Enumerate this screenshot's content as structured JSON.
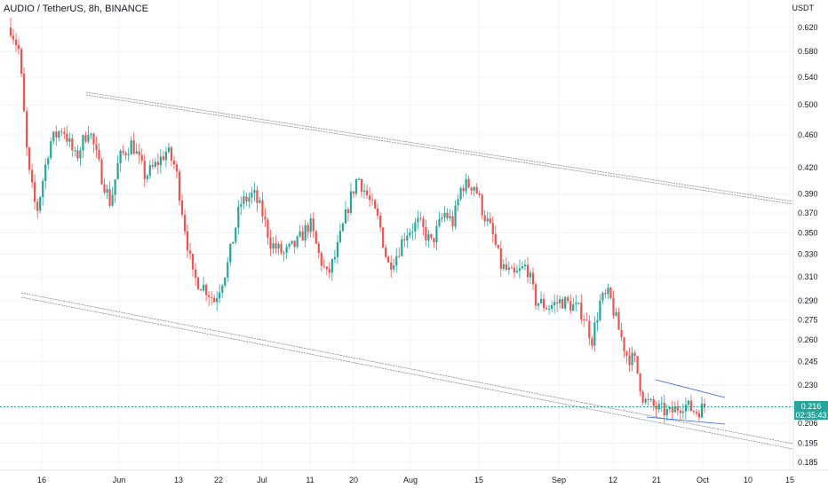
{
  "chart_data": {
    "type": "candlestick",
    "title": "AUDIO / TetherUS, 8h, BINANCE",
    "yunit": "USDT",
    "y_ticks": [
      "0.620",
      "0.580",
      "0.540",
      "0.500",
      "0.460",
      "0.420",
      "0.390",
      "0.370",
      "0.350",
      "0.330",
      "0.310",
      "0.290",
      "0.275",
      "0.260",
      "0.245",
      "0.230",
      "0.206",
      "0.195",
      "0.185"
    ],
    "x_ticks": [
      "16",
      "Jun",
      "13",
      "22",
      "Jul",
      "11",
      "20",
      "Aug",
      "15",
      "Sep",
      "12",
      "21",
      "Oct",
      "10",
      "15"
    ],
    "last_price": "0.216",
    "countdown": "02:35:43",
    "up_color": "#26a69a",
    "down_color": "#ef5350",
    "grid": true,
    "y_scale": "log",
    "anchors": [
      {
        "t": 0.0,
        "c": 0.62
      },
      {
        "t": 0.01,
        "c": 0.58
      },
      {
        "t": 0.02,
        "c": 0.42
      },
      {
        "t": 0.03,
        "c": 0.37
      },
      {
        "t": 0.045,
        "c": 0.45
      },
      {
        "t": 0.06,
        "c": 0.47
      },
      {
        "t": 0.075,
        "c": 0.43
      },
      {
        "t": 0.09,
        "c": 0.47
      },
      {
        "t": 0.105,
        "c": 0.41
      },
      {
        "t": 0.115,
        "c": 0.38
      },
      {
        "t": 0.125,
        "c": 0.43
      },
      {
        "t": 0.14,
        "c": 0.45
      },
      {
        "t": 0.155,
        "c": 0.41
      },
      {
        "t": 0.165,
        "c": 0.42
      },
      {
        "t": 0.18,
        "c": 0.44
      },
      {
        "t": 0.19,
        "c": 0.42
      },
      {
        "t": 0.2,
        "c": 0.36
      },
      {
        "t": 0.21,
        "c": 0.31
      },
      {
        "t": 0.225,
        "c": 0.3
      },
      {
        "t": 0.235,
        "c": 0.29
      },
      {
        "t": 0.25,
        "c": 0.32
      },
      {
        "t": 0.265,
        "c": 0.38
      },
      {
        "t": 0.28,
        "c": 0.39
      },
      {
        "t": 0.29,
        "c": 0.37
      },
      {
        "t": 0.3,
        "c": 0.34
      },
      {
        "t": 0.315,
        "c": 0.33
      },
      {
        "t": 0.33,
        "c": 0.34
      },
      {
        "t": 0.345,
        "c": 0.36
      },
      {
        "t": 0.355,
        "c": 0.33
      },
      {
        "t": 0.365,
        "c": 0.31
      },
      {
        "t": 0.375,
        "c": 0.33
      },
      {
        "t": 0.39,
        "c": 0.38
      },
      {
        "t": 0.4,
        "c": 0.41
      },
      {
        "t": 0.41,
        "c": 0.39
      },
      {
        "t": 0.425,
        "c": 0.36
      },
      {
        "t": 0.435,
        "c": 0.32
      },
      {
        "t": 0.445,
        "c": 0.33
      },
      {
        "t": 0.455,
        "c": 0.35
      },
      {
        "t": 0.47,
        "c": 0.36
      },
      {
        "t": 0.485,
        "c": 0.34
      },
      {
        "t": 0.5,
        "c": 0.37
      },
      {
        "t": 0.51,
        "c": 0.36
      },
      {
        "t": 0.52,
        "c": 0.4
      },
      {
        "t": 0.535,
        "c": 0.4
      },
      {
        "t": 0.545,
        "c": 0.37
      },
      {
        "t": 0.555,
        "c": 0.35
      },
      {
        "t": 0.565,
        "c": 0.32
      },
      {
        "t": 0.58,
        "c": 0.31
      },
      {
        "t": 0.595,
        "c": 0.32
      },
      {
        "t": 0.605,
        "c": 0.29
      },
      {
        "t": 0.62,
        "c": 0.285
      },
      {
        "t": 0.635,
        "c": 0.29
      },
      {
        "t": 0.65,
        "c": 0.285
      },
      {
        "t": 0.66,
        "c": 0.28
      },
      {
        "t": 0.67,
        "c": 0.26
      },
      {
        "t": 0.68,
        "c": 0.29
      },
      {
        "t": 0.69,
        "c": 0.295
      },
      {
        "t": 0.7,
        "c": 0.27
      },
      {
        "t": 0.71,
        "c": 0.25
      },
      {
        "t": 0.72,
        "c": 0.245
      },
      {
        "t": 0.73,
        "c": 0.22
      },
      {
        "t": 0.745,
        "c": 0.215
      },
      {
        "t": 0.76,
        "c": 0.212
      },
      {
        "t": 0.775,
        "c": 0.218
      },
      {
        "t": 0.79,
        "c": 0.213
      },
      {
        "t": 0.8,
        "c": 0.216
      }
    ]
  }
}
